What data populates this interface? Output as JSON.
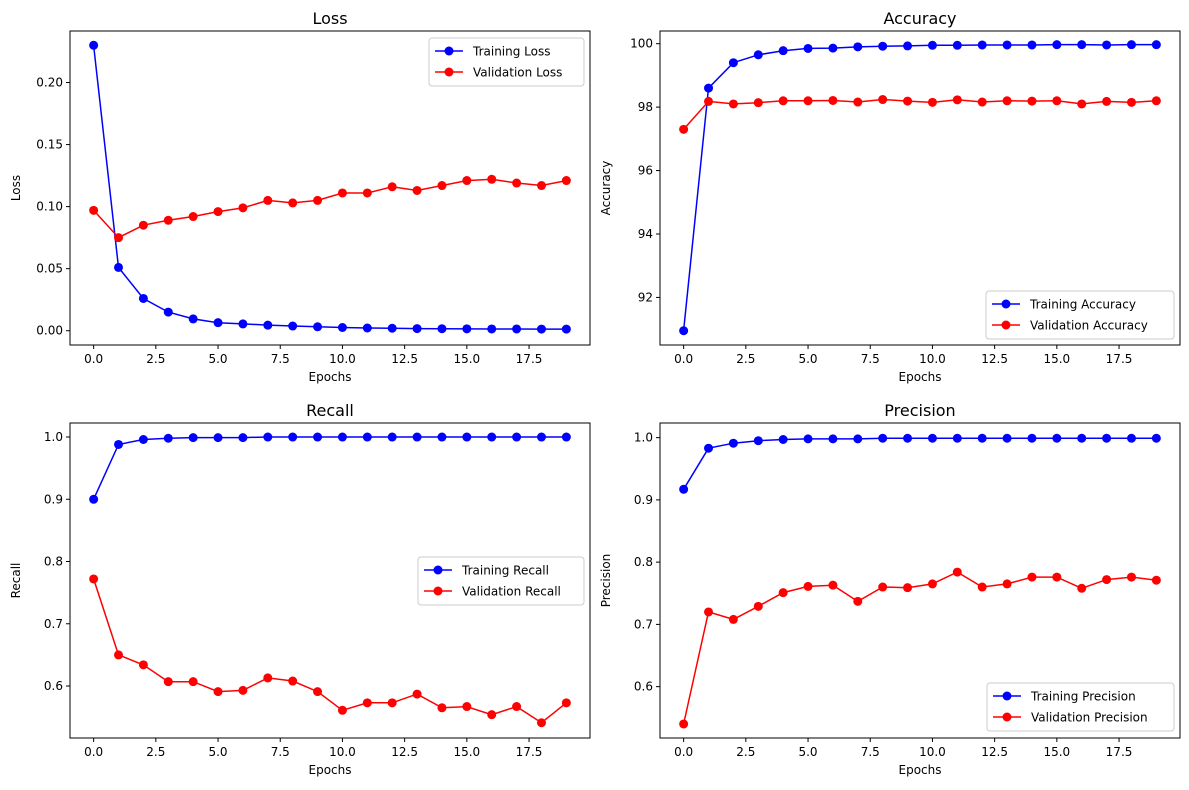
{
  "chart_data": [
    {
      "type": "line",
      "title": "Loss",
      "xlabel": "Epochs",
      "ylabel": "Loss",
      "xlim": [
        -0.95,
        19.95
      ],
      "ylim": [
        -0.0115,
        0.2415
      ],
      "xticks": [
        0.0,
        2.5,
        5.0,
        7.5,
        10.0,
        12.5,
        15.0,
        17.5
      ],
      "xtick_labels": [
        "0.0",
        "2.5",
        "5.0",
        "7.5",
        "10.0",
        "12.5",
        "15.0",
        "17.5"
      ],
      "yticks": [
        0.0,
        0.05,
        0.1,
        0.15,
        0.2
      ],
      "ytick_labels": [
        "0.00",
        "0.05",
        "0.10",
        "0.15",
        "0.20"
      ],
      "legend_position": "top-right",
      "x": [
        0,
        1,
        2,
        3,
        4,
        5,
        6,
        7,
        8,
        9,
        10,
        11,
        12,
        13,
        14,
        15,
        16,
        17,
        18,
        19
      ],
      "series": [
        {
          "name": "Training Loss",
          "color": "#0000ff",
          "values": [
            0.23,
            0.051,
            0.026,
            0.015,
            0.0095,
            0.0065,
            0.0055,
            0.0045,
            0.0038,
            0.0032,
            0.0026,
            0.0022,
            0.002,
            0.0017,
            0.0016,
            0.0015,
            0.0014,
            0.0014,
            0.0013,
            0.0013
          ]
        },
        {
          "name": "Validation Loss",
          "color": "#ff0000",
          "values": [
            0.097,
            0.075,
            0.085,
            0.089,
            0.092,
            0.096,
            0.099,
            0.105,
            0.103,
            0.105,
            0.111,
            0.111,
            0.116,
            0.113,
            0.117,
            0.121,
            0.122,
            0.119,
            0.117,
            0.121
          ]
        }
      ]
    },
    {
      "type": "line",
      "title": "Accuracy",
      "xlabel": "Epochs",
      "ylabel": "Accuracy",
      "xlim": [
        -0.95,
        19.95
      ],
      "ylim": [
        90.5,
        100.4
      ],
      "xticks": [
        0.0,
        2.5,
        5.0,
        7.5,
        10.0,
        12.5,
        15.0,
        17.5
      ],
      "xtick_labels": [
        "0.0",
        "2.5",
        "5.0",
        "7.5",
        "10.0",
        "12.5",
        "15.0",
        "17.5"
      ],
      "yticks": [
        92,
        94,
        96,
        98,
        100
      ],
      "ytick_labels": [
        "92",
        "94",
        "96",
        "98",
        "100"
      ],
      "legend_position": "bottom-right",
      "x": [
        0,
        1,
        2,
        3,
        4,
        5,
        6,
        7,
        8,
        9,
        10,
        11,
        12,
        13,
        14,
        15,
        16,
        17,
        18,
        19
      ],
      "series": [
        {
          "name": "Training Accuracy",
          "color": "#0000ff",
          "values": [
            90.95,
            98.6,
            99.4,
            99.65,
            99.78,
            99.85,
            99.86,
            99.9,
            99.92,
            99.93,
            99.95,
            99.95,
            99.96,
            99.96,
            99.96,
            99.97,
            99.97,
            99.96,
            99.97,
            99.97
          ]
        },
        {
          "name": "Validation Accuracy",
          "color": "#ff0000",
          "values": [
            97.3,
            98.18,
            98.1,
            98.14,
            98.2,
            98.2,
            98.21,
            98.16,
            98.24,
            98.19,
            98.15,
            98.23,
            98.16,
            98.2,
            98.19,
            98.2,
            98.1,
            98.18,
            98.15,
            98.2
          ]
        }
      ]
    },
    {
      "type": "line",
      "title": "Recall",
      "xlabel": "Epochs",
      "ylabel": "Recall",
      "xlim": [
        -0.95,
        19.95
      ],
      "ylim": [
        0.5165,
        1.0225
      ],
      "xticks": [
        0.0,
        2.5,
        5.0,
        7.5,
        10.0,
        12.5,
        15.0,
        17.5
      ],
      "xtick_labels": [
        "0.0",
        "2.5",
        "5.0",
        "7.5",
        "10.0",
        "12.5",
        "15.0",
        "17.5"
      ],
      "yticks": [
        0.6,
        0.7,
        0.8,
        0.9,
        1.0
      ],
      "ytick_labels": [
        "0.6",
        "0.7",
        "0.8",
        "0.9",
        "1.0"
      ],
      "legend_position": "center-right",
      "x": [
        0,
        1,
        2,
        3,
        4,
        5,
        6,
        7,
        8,
        9,
        10,
        11,
        12,
        13,
        14,
        15,
        16,
        17,
        18,
        19
      ],
      "series": [
        {
          "name": "Training Recall",
          "color": "#0000ff",
          "values": [
            0.9,
            0.988,
            0.996,
            0.998,
            0.999,
            0.999,
            0.999,
            1.0,
            1.0,
            1.0,
            1.0,
            1.0,
            1.0,
            1.0,
            1.0,
            1.0,
            1.0,
            1.0,
            1.0,
            1.0
          ]
        },
        {
          "name": "Validation Recall",
          "color": "#ff0000",
          "values": [
            0.772,
            0.65,
            0.634,
            0.607,
            0.607,
            0.591,
            0.593,
            0.613,
            0.608,
            0.591,
            0.561,
            0.573,
            0.573,
            0.587,
            0.565,
            0.567,
            0.554,
            0.567,
            0.541,
            0.573
          ]
        }
      ]
    },
    {
      "type": "line",
      "title": "Precision",
      "xlabel": "Epochs",
      "ylabel": "Precision",
      "xlim": [
        -0.95,
        19.95
      ],
      "ylim": [
        0.5175,
        1.0235
      ],
      "xticks": [
        0.0,
        2.5,
        5.0,
        7.5,
        10.0,
        12.5,
        15.0,
        17.5
      ],
      "xtick_labels": [
        "0.0",
        "2.5",
        "5.0",
        "7.5",
        "10.0",
        "12.5",
        "15.0",
        "17.5"
      ],
      "yticks": [
        0.6,
        0.7,
        0.8,
        0.9,
        1.0
      ],
      "ytick_labels": [
        "0.6",
        "0.7",
        "0.8",
        "0.9",
        "1.0"
      ],
      "legend_position": "bottom-right",
      "x": [
        0,
        1,
        2,
        3,
        4,
        5,
        6,
        7,
        8,
        9,
        10,
        11,
        12,
        13,
        14,
        15,
        16,
        17,
        18,
        19
      ],
      "series": [
        {
          "name": "Training Precision",
          "color": "#0000ff",
          "values": [
            0.917,
            0.983,
            0.991,
            0.995,
            0.997,
            0.998,
            0.998,
            0.998,
            0.999,
            0.999,
            0.999,
            0.999,
            0.999,
            0.999,
            0.999,
            0.999,
            0.999,
            0.999,
            0.999,
            0.999
          ]
        },
        {
          "name": "Validation Precision",
          "color": "#ff0000",
          "values": [
            0.54,
            0.72,
            0.708,
            0.729,
            0.751,
            0.761,
            0.763,
            0.737,
            0.76,
            0.759,
            0.765,
            0.784,
            0.76,
            0.765,
            0.776,
            0.776,
            0.758,
            0.772,
            0.776,
            0.771
          ]
        }
      ]
    }
  ]
}
